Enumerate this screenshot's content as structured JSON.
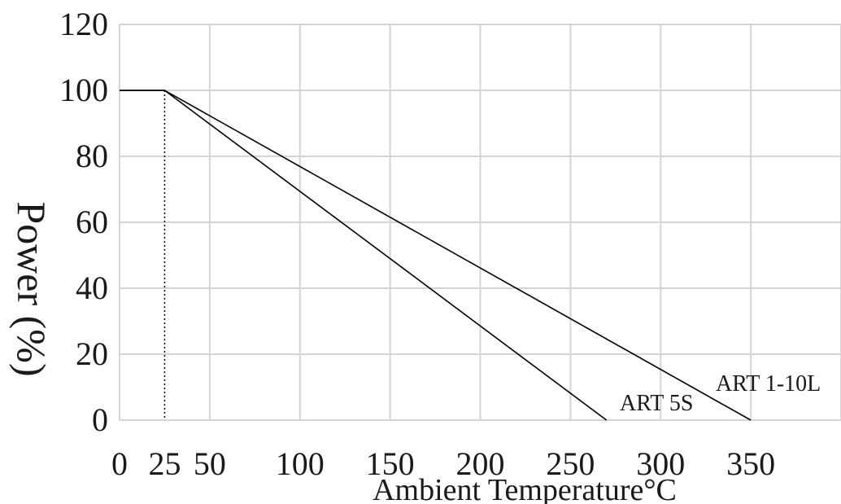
{
  "chart_data": {
    "type": "line",
    "title": "",
    "xlabel": "Ambient Temperature°C",
    "ylabel": "Power (%)",
    "xlim": [
      0,
      400
    ],
    "ylim": [
      0,
      120
    ],
    "x_ticks": [
      0,
      25,
      50,
      100,
      150,
      200,
      250,
      300,
      350
    ],
    "y_ticks": [
      0,
      20,
      40,
      60,
      80,
      100,
      120
    ],
    "x_tick_labels": [
      "0",
      "25",
      "50",
      "100",
      "150",
      "200",
      "250",
      "300",
      "350"
    ],
    "y_tick_labels": [
      "0",
      "20",
      "40",
      "60",
      "80",
      "100",
      "120"
    ],
    "grid": true,
    "reference_x": 25,
    "series": [
      {
        "name": "ART 5S",
        "x": [
          0,
          25,
          270
        ],
        "y": [
          100,
          100,
          0
        ]
      },
      {
        "name": "ART 1-10L",
        "x": [
          0,
          25,
          350
        ],
        "y": [
          100,
          100,
          0
        ]
      }
    ],
    "colors": {
      "line": "#000000",
      "grid": "#d4d4d4",
      "text": "#1a1a1a"
    }
  }
}
